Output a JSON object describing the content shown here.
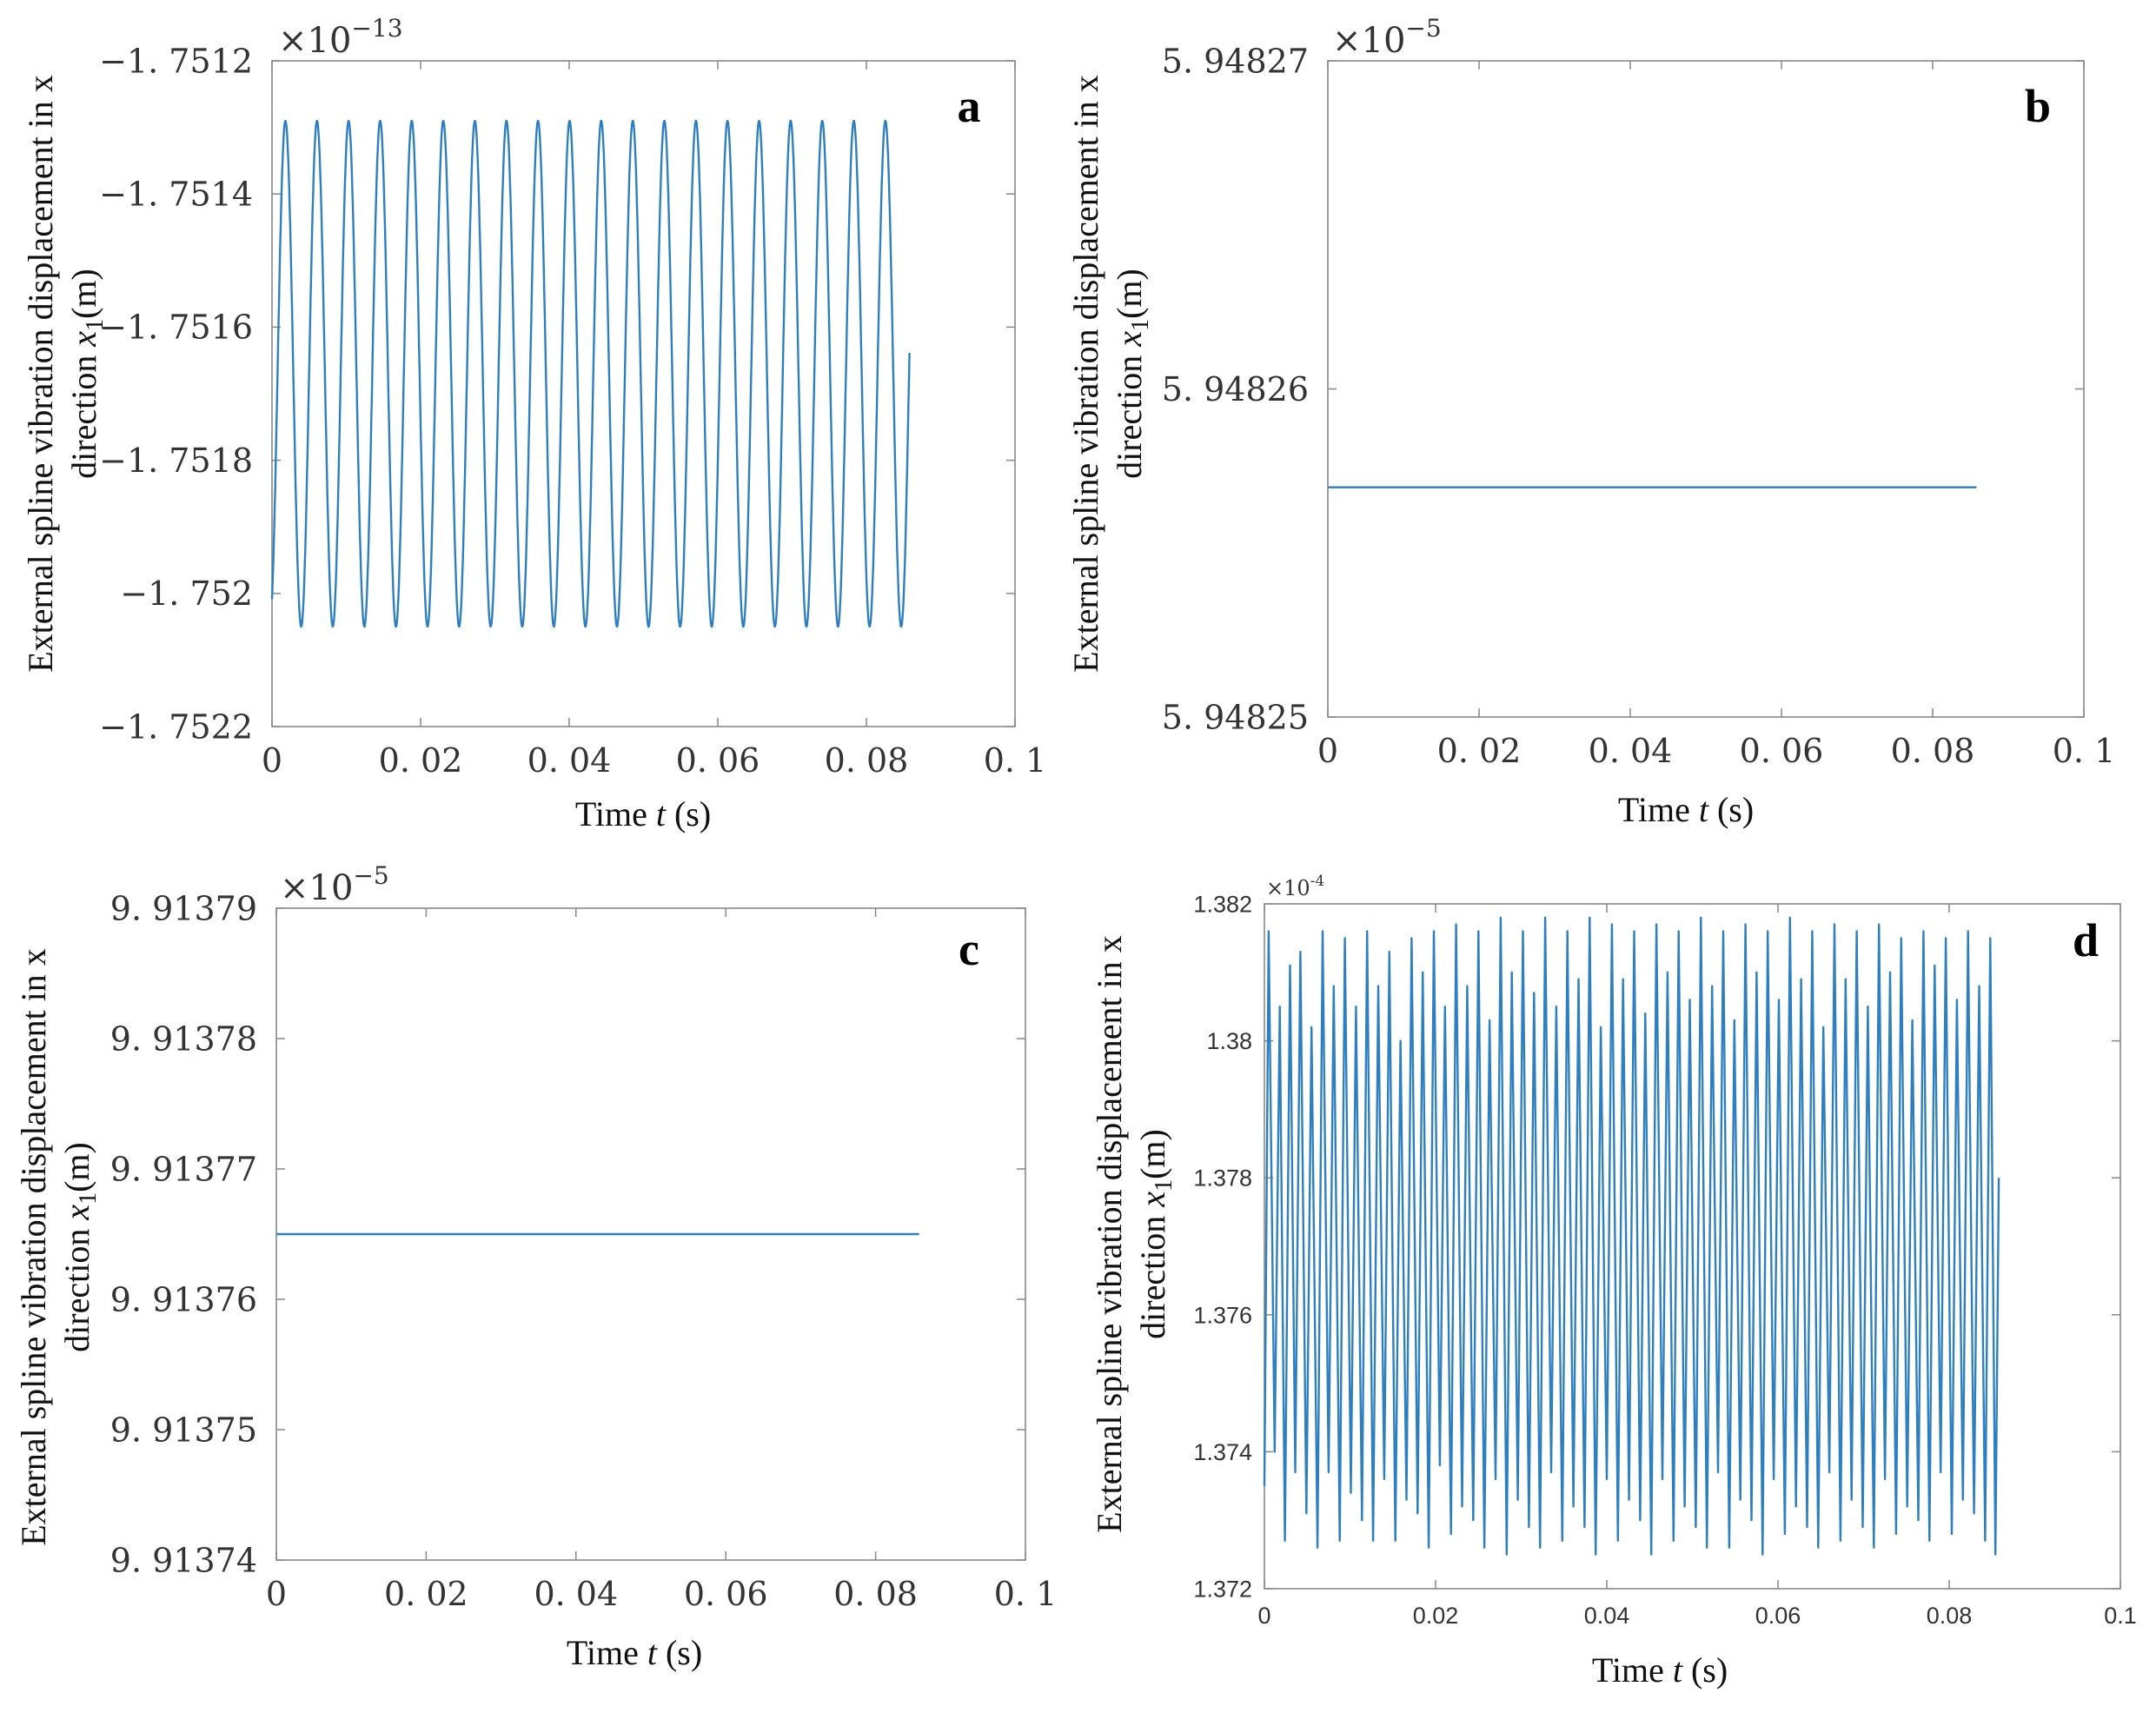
{
  "figure": {
    "colors": {
      "line": "#2e7fbf",
      "axis": "#888888",
      "text": "#333333"
    }
  },
  "chart_data": [
    {
      "panel": "a",
      "type": "line",
      "scale_label": "×10",
      "scale_exponent": "−13",
      "xlabel_pre": "Time ",
      "xlabel_var": "t",
      "xlabel_post": " (s)",
      "ylabel_line1": "External spline vibration displacement in x",
      "ylabel_line2_pre": "direction ",
      "ylabel_line2_var": "x",
      "ylabel_line2_sub": "1",
      "ylabel_line2_post": "(m)",
      "xlim": [
        0,
        0.1
      ],
      "ylim": [
        -1.7522,
        -1.7512
      ],
      "xticks": [
        0,
        0.02,
        0.04,
        0.06,
        0.08,
        0.1
      ],
      "xtick_labels": [
        "0",
        "0. 02",
        "0. 04",
        "0. 06",
        "0. 08",
        "0. 1"
      ],
      "yticks": [
        -1.7512,
        -1.7514,
        -1.7516,
        -1.7518,
        -1.752,
        -1.7522
      ],
      "ytick_labels": [
        "−1. 7512",
        "−1. 7514",
        "−1. 7516",
        "−1. 7518",
        "−1. 752",
        "−1. 7522"
      ],
      "series": [
        {
          "name": "x1",
          "kind": "sine",
          "t_start": 0,
          "t_end": 0.0858,
          "center": -1.75167,
          "amplitude": 0.00038,
          "period": 0.00425,
          "phase": -1.1
        }
      ]
    },
    {
      "panel": "b",
      "type": "line",
      "scale_label": "×10",
      "scale_exponent": "−5",
      "xlabel_pre": "Time ",
      "xlabel_var": "t",
      "xlabel_post": " (s)",
      "ylabel_line1": "External spline vibration displacement in x",
      "ylabel_line2_pre": "direction ",
      "ylabel_line2_var": "x",
      "ylabel_line2_sub": "1",
      "ylabel_line2_post": "(m)",
      "xlim": [
        0,
        0.1
      ],
      "ylim": [
        5.94825,
        5.94827
      ],
      "xticks": [
        0,
        0.02,
        0.04,
        0.06,
        0.08,
        0.1
      ],
      "xtick_labels": [
        "0",
        "0. 02",
        "0. 04",
        "0. 06",
        "0. 08",
        "0. 1"
      ],
      "yticks": [
        5.94827,
        5.94826,
        5.94825
      ],
      "ytick_labels": [
        "5. 94827",
        "5. 94826",
        "5. 94825"
      ],
      "series": [
        {
          "name": "x1",
          "kind": "constant",
          "t_start": 0,
          "t_end": 0.0858,
          "value": 5.948257
        }
      ]
    },
    {
      "panel": "c",
      "type": "line",
      "scale_label": "×10",
      "scale_exponent": "−5",
      "xlabel_pre": "Time ",
      "xlabel_var": "t",
      "xlabel_post": " (s)",
      "ylabel_line1": "External spline vibration displacement in x",
      "ylabel_line2_pre": "direction ",
      "ylabel_line2_var": "x",
      "ylabel_line2_sub": "1",
      "ylabel_line2_post": "(m)",
      "xlim": [
        0,
        0.1
      ],
      "ylim": [
        9.91374,
        9.91379
      ],
      "xticks": [
        0,
        0.02,
        0.04,
        0.06,
        0.08,
        0.1
      ],
      "xtick_labels": [
        "0",
        "0. 02",
        "0. 04",
        "0. 06",
        "0. 08",
        "0. 1"
      ],
      "yticks": [
        9.91379,
        9.91378,
        9.91377,
        9.91376,
        9.91375,
        9.91374
      ],
      "ytick_labels": [
        "9. 91379",
        "9. 91378",
        "9. 91377",
        "9. 91376",
        "9. 91375",
        "9. 91374"
      ],
      "series": [
        {
          "name": "x1",
          "kind": "constant",
          "t_start": 0,
          "t_end": 0.0858,
          "value": 9.913765
        }
      ]
    },
    {
      "panel": "d",
      "type": "line",
      "scale_label": "×10",
      "scale_exponent": "-4",
      "xlabel_pre": "Time ",
      "xlabel_var": "t",
      "xlabel_post": " (s)",
      "ylabel_line1": "External spline vibration displacement in x",
      "ylabel_line2_pre": "direction ",
      "ylabel_line2_var": "x",
      "ylabel_line2_sub": "1",
      "ylabel_line2_post": "(m)",
      "xlim": [
        0,
        0.1
      ],
      "ylim": [
        1.372,
        1.382
      ],
      "xticks": [
        0,
        0.02,
        0.04,
        0.06,
        0.08,
        0.1
      ],
      "xtick_labels": [
        "0",
        "0.02",
        "0.04",
        "0.06",
        "0.08",
        "0.1"
      ],
      "yticks": [
        1.382,
        1.38,
        1.378,
        1.376,
        1.374,
        1.372
      ],
      "ytick_labels": [
        "1.382",
        "1.38",
        "1.378",
        "1.376",
        "1.374",
        "1.372"
      ],
      "series": [
        {
          "name": "x1",
          "kind": "oscillation",
          "t_start": 0,
          "t_end": 0.0858,
          "end_value": 1.378,
          "peaks": [
            [
              0.0005,
              1.3816
            ],
            [
              0.0018,
              1.3805
            ],
            [
              0.003,
              1.3811
            ],
            [
              0.0042,
              1.3813
            ],
            [
              0.0055,
              1.3802
            ],
            [
              0.0068,
              1.3816
            ],
            [
              0.0081,
              1.3808
            ],
            [
              0.0094,
              1.3815
            ],
            [
              0.0107,
              1.3805
            ],
            [
              0.012,
              1.3816
            ],
            [
              0.0133,
              1.3808
            ],
            [
              0.0146,
              1.3813
            ],
            [
              0.0159,
              1.38
            ],
            [
              0.0172,
              1.3815
            ],
            [
              0.0185,
              1.381
            ],
            [
              0.0198,
              1.3816
            ],
            [
              0.0211,
              1.3805
            ],
            [
              0.0224,
              1.3817
            ],
            [
              0.0237,
              1.3808
            ],
            [
              0.025,
              1.3816
            ],
            [
              0.0263,
              1.3803
            ],
            [
              0.0276,
              1.3818
            ],
            [
              0.0289,
              1.381
            ],
            [
              0.0302,
              1.3816
            ],
            [
              0.0315,
              1.3807
            ],
            [
              0.0328,
              1.3818
            ],
            [
              0.0341,
              1.3805
            ],
            [
              0.0354,
              1.3816
            ],
            [
              0.0367,
              1.3809
            ],
            [
              0.038,
              1.3818
            ],
            [
              0.0393,
              1.3802
            ],
            [
              0.0406,
              1.3817
            ],
            [
              0.0419,
              1.3809
            ],
            [
              0.0432,
              1.3816
            ],
            [
              0.0445,
              1.3804
            ],
            [
              0.0458,
              1.3817
            ],
            [
              0.0471,
              1.381
            ],
            [
              0.0484,
              1.3816
            ],
            [
              0.0497,
              1.3806
            ],
            [
              0.051,
              1.3818
            ],
            [
              0.0523,
              1.3808
            ],
            [
              0.0536,
              1.3816
            ],
            [
              0.0549,
              1.3803
            ],
            [
              0.0562,
              1.3817
            ],
            [
              0.0575,
              1.381
            ],
            [
              0.0588,
              1.3816
            ],
            [
              0.0601,
              1.3806
            ],
            [
              0.0614,
              1.3818
            ],
            [
              0.0627,
              1.3809
            ],
            [
              0.064,
              1.3816
            ],
            [
              0.0653,
              1.3802
            ],
            [
              0.0666,
              1.3817
            ],
            [
              0.0679,
              1.3809
            ],
            [
              0.0692,
              1.3816
            ],
            [
              0.0705,
              1.3805
            ],
            [
              0.0718,
              1.3817
            ],
            [
              0.0731,
              1.381
            ],
            [
              0.0744,
              1.3815
            ],
            [
              0.0757,
              1.3803
            ],
            [
              0.077,
              1.3816
            ],
            [
              0.0783,
              1.3811
            ],
            [
              0.0796,
              1.3815
            ],
            [
              0.0809,
              1.3806
            ],
            [
              0.0822,
              1.3816
            ],
            [
              0.0835,
              1.3808
            ],
            [
              0.0848,
              1.3815
            ]
          ],
          "troughs": [
            [
              0.0,
              1.3735
            ],
            [
              0.0012,
              1.374
            ],
            [
              0.0024,
              1.3727
            ],
            [
              0.0036,
              1.3737
            ],
            [
              0.0049,
              1.3731
            ],
            [
              0.0062,
              1.3726
            ],
            [
              0.0075,
              1.3737
            ],
            [
              0.0088,
              1.3727
            ],
            [
              0.0101,
              1.3734
            ],
            [
              0.0114,
              1.373
            ],
            [
              0.0127,
              1.3727
            ],
            [
              0.014,
              1.3736
            ],
            [
              0.0153,
              1.3727
            ],
            [
              0.0166,
              1.3733
            ],
            [
              0.0179,
              1.3731
            ],
            [
              0.0192,
              1.3726
            ],
            [
              0.0205,
              1.3738
            ],
            [
              0.0218,
              1.3728
            ],
            [
              0.0231,
              1.3732
            ],
            [
              0.0244,
              1.373
            ],
            [
              0.0257,
              1.3726
            ],
            [
              0.027,
              1.3736
            ],
            [
              0.0283,
              1.3725
            ],
            [
              0.0296,
              1.3733
            ],
            [
              0.0309,
              1.3729
            ],
            [
              0.0322,
              1.3726
            ],
            [
              0.0335,
              1.3737
            ],
            [
              0.0348,
              1.3727
            ],
            [
              0.0361,
              1.3732
            ],
            [
              0.0374,
              1.3729
            ],
            [
              0.0387,
              1.3725
            ],
            [
              0.04,
              1.3736
            ],
            [
              0.0413,
              1.3727
            ],
            [
              0.0426,
              1.3733
            ],
            [
              0.0439,
              1.373
            ],
            [
              0.0452,
              1.3725
            ],
            [
              0.0465,
              1.3736
            ],
            [
              0.0478,
              1.3727
            ],
            [
              0.0491,
              1.3732
            ],
            [
              0.0504,
              1.3729
            ],
            [
              0.0517,
              1.3726
            ],
            [
              0.053,
              1.3737
            ],
            [
              0.0543,
              1.3726
            ],
            [
              0.0556,
              1.3733
            ],
            [
              0.0569,
              1.373
            ],
            [
              0.0582,
              1.3725
            ],
            [
              0.0595,
              1.3736
            ],
            [
              0.0608,
              1.3728
            ],
            [
              0.0621,
              1.3732
            ],
            [
              0.0634,
              1.3729
            ],
            [
              0.0647,
              1.3726
            ],
            [
              0.066,
              1.3737
            ],
            [
              0.0673,
              1.3727
            ],
            [
              0.0686,
              1.3733
            ],
            [
              0.0699,
              1.3729
            ],
            [
              0.0712,
              1.3726
            ],
            [
              0.0725,
              1.3736
            ],
            [
              0.0738,
              1.3728
            ],
            [
              0.0751,
              1.3732
            ],
            [
              0.0764,
              1.373
            ],
            [
              0.0777,
              1.3727
            ],
            [
              0.079,
              1.3737
            ],
            [
              0.0803,
              1.3728
            ],
            [
              0.0816,
              1.3733
            ],
            [
              0.0829,
              1.3731
            ],
            [
              0.0842,
              1.3727
            ],
            [
              0.0854,
              1.3725
            ]
          ]
        }
      ]
    }
  ]
}
